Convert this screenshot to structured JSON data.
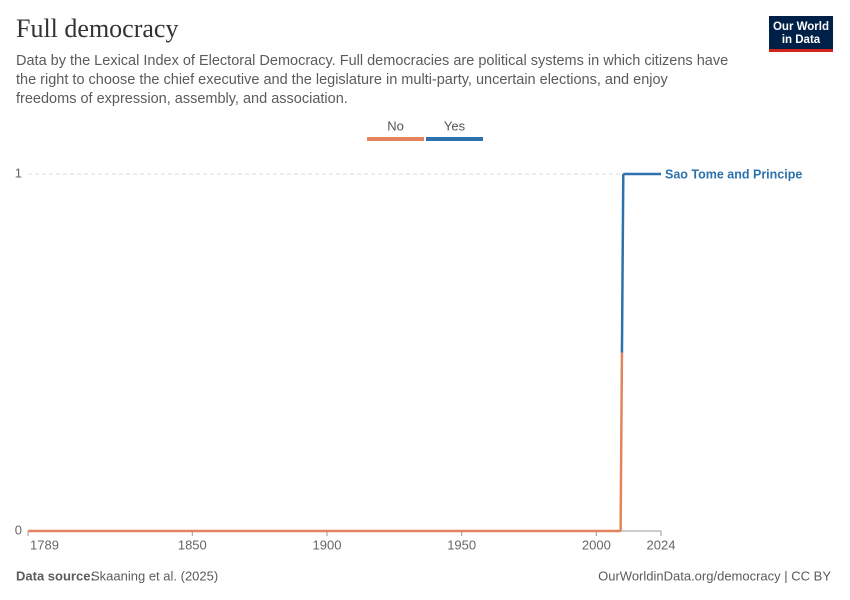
{
  "chart_data": {
    "type": "line",
    "title": "Full democracy",
    "subtitle": [
      "Data by the Lexical Index of Electoral Democracy. Full democracies are political systems in which citizens have",
      "the right to choose the chief executive and the legislature in multi-party, uncertain elections, and enjoy",
      "freedoms of expression, assembly, and association."
    ],
    "logo": [
      "Our World",
      "in Data"
    ],
    "source_label": "Data source:",
    "source": "Skaaning et al. (2025)",
    "url": "OurWorldinData.org/democracy | CC BY",
    "color_bins": [
      {
        "label": "No",
        "color": "#e6835f"
      },
      {
        "label": "Yes",
        "color": "#2d72ac"
      }
    ],
    "x": [
      1789,
      2009,
      2010,
      2024
    ],
    "series": [
      {
        "name": "Sao Tome and Principe",
        "color": "#2d72ac",
        "values": [
          0,
          0,
          1,
          1
        ]
      }
    ],
    "xlim": [
      1789,
      2024
    ],
    "xticks": [
      1789,
      1850,
      1900,
      1950,
      2000,
      2024
    ],
    "ylim": [
      0,
      1
    ],
    "yticks": [
      0,
      1
    ],
    "grid": true
  }
}
